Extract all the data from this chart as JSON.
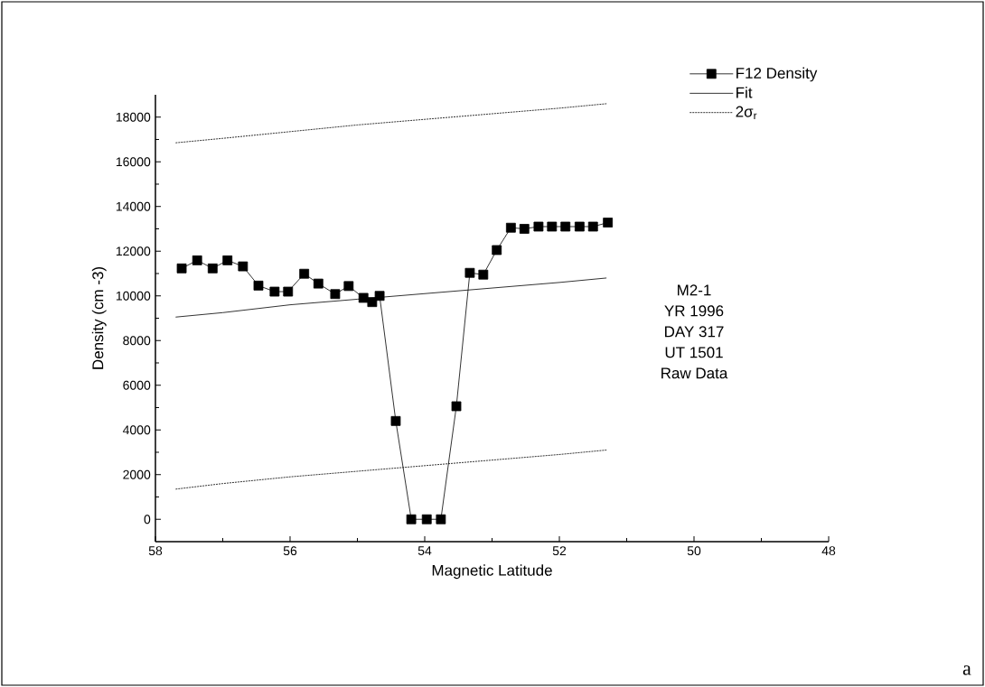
{
  "chart_data": {
    "type": "line",
    "xlabel": "Magnetic Latitude",
    "ylabel": "Density (cm -3)",
    "xlim": [
      58,
      48
    ],
    "ylim": [
      -1000,
      19000
    ],
    "xticks": [
      58,
      56,
      54,
      52,
      50,
      48
    ],
    "yticks": [
      0,
      2000,
      4000,
      6000,
      8000,
      10000,
      12000,
      14000,
      16000,
      18000
    ],
    "legend": "top right",
    "grid": false,
    "series": [
      {
        "name": "F12 Density",
        "color": "#000000",
        "marker": "square",
        "line_style": "solid",
        "x": [
          57.61,
          57.38,
          57.15,
          56.93,
          56.7,
          56.47,
          56.23,
          56.03,
          55.79,
          55.58,
          55.33,
          55.13,
          54.91,
          54.78,
          54.67,
          54.43,
          54.2,
          53.97,
          53.76,
          53.53,
          53.33,
          53.13,
          52.93,
          52.72,
          52.52,
          52.31,
          52.11,
          51.91,
          51.7,
          51.5,
          51.28
        ],
        "values": [
          11230,
          11590,
          11230,
          11590,
          11320,
          10460,
          10190,
          10190,
          10990,
          10550,
          10080,
          10440,
          9910,
          9720,
          10000,
          4400,
          0,
          0,
          0,
          5060,
          11030,
          10950,
          12050,
          13050,
          13000,
          13100,
          13100,
          13100,
          13100,
          13100,
          13280
        ]
      },
      {
        "name": "Fit",
        "color": "#000000",
        "marker": "none",
        "line_style": "solid",
        "x": [
          57.7,
          57.0,
          56.0,
          55.0,
          54.0,
          53.0,
          52.0,
          51.3
        ],
        "values": [
          9050,
          9250,
          9600,
          9850,
          10100,
          10350,
          10600,
          10800
        ]
      },
      {
        "name": "2σ$_{r}$",
        "color": "#000000",
        "marker": "none",
        "line_style": "dashed",
        "x": [
          57.7,
          57.0,
          56.0,
          55.0,
          54.0,
          53.0,
          52.0,
          51.3
        ],
        "values": [
          16850,
          17050,
          17350,
          17650,
          17900,
          18150,
          18400,
          18600
        ]
      },
      {
        "color": "#000000",
        "marker": "none",
        "line_style": "dashed",
        "x": [
          57.7,
          57.0,
          56.0,
          55.0,
          54.0,
          53.0,
          52.0,
          51.3
        ],
        "values": [
          1350,
          1600,
          1900,
          2150,
          2400,
          2650,
          2900,
          3100
        ]
      }
    ],
    "annotations": [
      "M2-1",
      "YR 1996",
      "DAY 317",
      "UT 1501",
      "Raw Data",
      "a"
    ]
  }
}
